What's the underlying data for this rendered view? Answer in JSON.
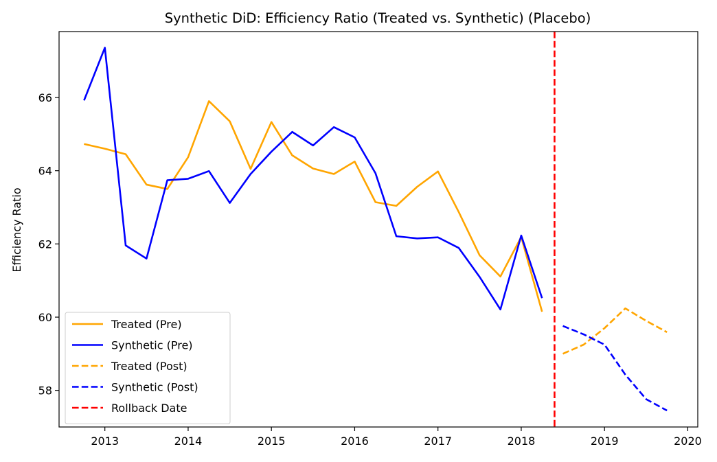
{
  "chart_data": {
    "type": "line",
    "title": "Synthetic DiD: Efficiency Ratio (Treated vs. Synthetic) (Placebo)",
    "xlabel": "",
    "ylabel": "Efficiency Ratio",
    "xlim": [
      2012.45,
      2020.12
    ],
    "ylim": [
      57.0,
      67.8
    ],
    "x_ticks": [
      2013,
      2014,
      2015,
      2016,
      2017,
      2018,
      2019,
      2020
    ],
    "y_ticks": [
      58,
      60,
      62,
      64,
      66
    ],
    "grid": false,
    "legend_position": "lower-left",
    "series": [
      {
        "name": "Treated (Pre)",
        "color": "#ffa500",
        "style": "solid",
        "x": [
          2012.75,
          2013.0,
          2013.25,
          2013.5,
          2013.75,
          2014.0,
          2014.25,
          2014.5,
          2014.75,
          2015.0,
          2015.25,
          2015.5,
          2015.75,
          2016.0,
          2016.25,
          2016.5,
          2016.75,
          2017.0,
          2017.25,
          2017.5,
          2017.75,
          2018.0,
          2018.25
        ],
        "y": [
          64.73,
          64.6,
          64.45,
          63.62,
          63.5,
          64.37,
          65.9,
          65.35,
          64.05,
          65.33,
          64.42,
          64.06,
          63.91,
          64.25,
          63.14,
          63.04,
          63.56,
          63.98,
          62.87,
          61.69,
          61.11,
          62.19,
          60.15
        ]
      },
      {
        "name": "Synthetic (Pre)",
        "color": "#0000ff",
        "style": "solid",
        "x": [
          2012.75,
          2013.0,
          2013.25,
          2013.5,
          2013.75,
          2014.0,
          2014.25,
          2014.5,
          2014.75,
          2015.0,
          2015.25,
          2015.5,
          2015.75,
          2016.0,
          2016.25,
          2016.5,
          2016.75,
          2017.0,
          2017.25,
          2017.5,
          2017.75,
          2018.0,
          2018.25
        ],
        "y": [
          65.92,
          67.36,
          61.96,
          61.6,
          63.74,
          63.78,
          63.99,
          63.12,
          63.91,
          64.52,
          65.06,
          64.69,
          65.19,
          64.91,
          63.93,
          62.21,
          62.15,
          62.18,
          61.89,
          61.1,
          60.21,
          62.23,
          60.52
        ]
      },
      {
        "name": "Treated (Post)",
        "color": "#ffa500",
        "style": "dashed",
        "x": [
          2018.5,
          2018.75,
          2019.0,
          2019.25,
          2019.5,
          2019.75
        ],
        "y": [
          59.0,
          59.25,
          59.7,
          60.24,
          59.9,
          59.59
        ]
      },
      {
        "name": "Synthetic (Post)",
        "color": "#0000ff",
        "style": "dashed",
        "x": [
          2018.5,
          2018.75,
          2019.0,
          2019.25,
          2019.5,
          2019.75
        ],
        "y": [
          59.76,
          59.53,
          59.25,
          58.43,
          57.76,
          57.45
        ]
      }
    ],
    "vlines": [
      {
        "name": "Rollback Date",
        "x": 2018.4,
        "color": "#ff0000",
        "style": "dashed"
      }
    ]
  }
}
